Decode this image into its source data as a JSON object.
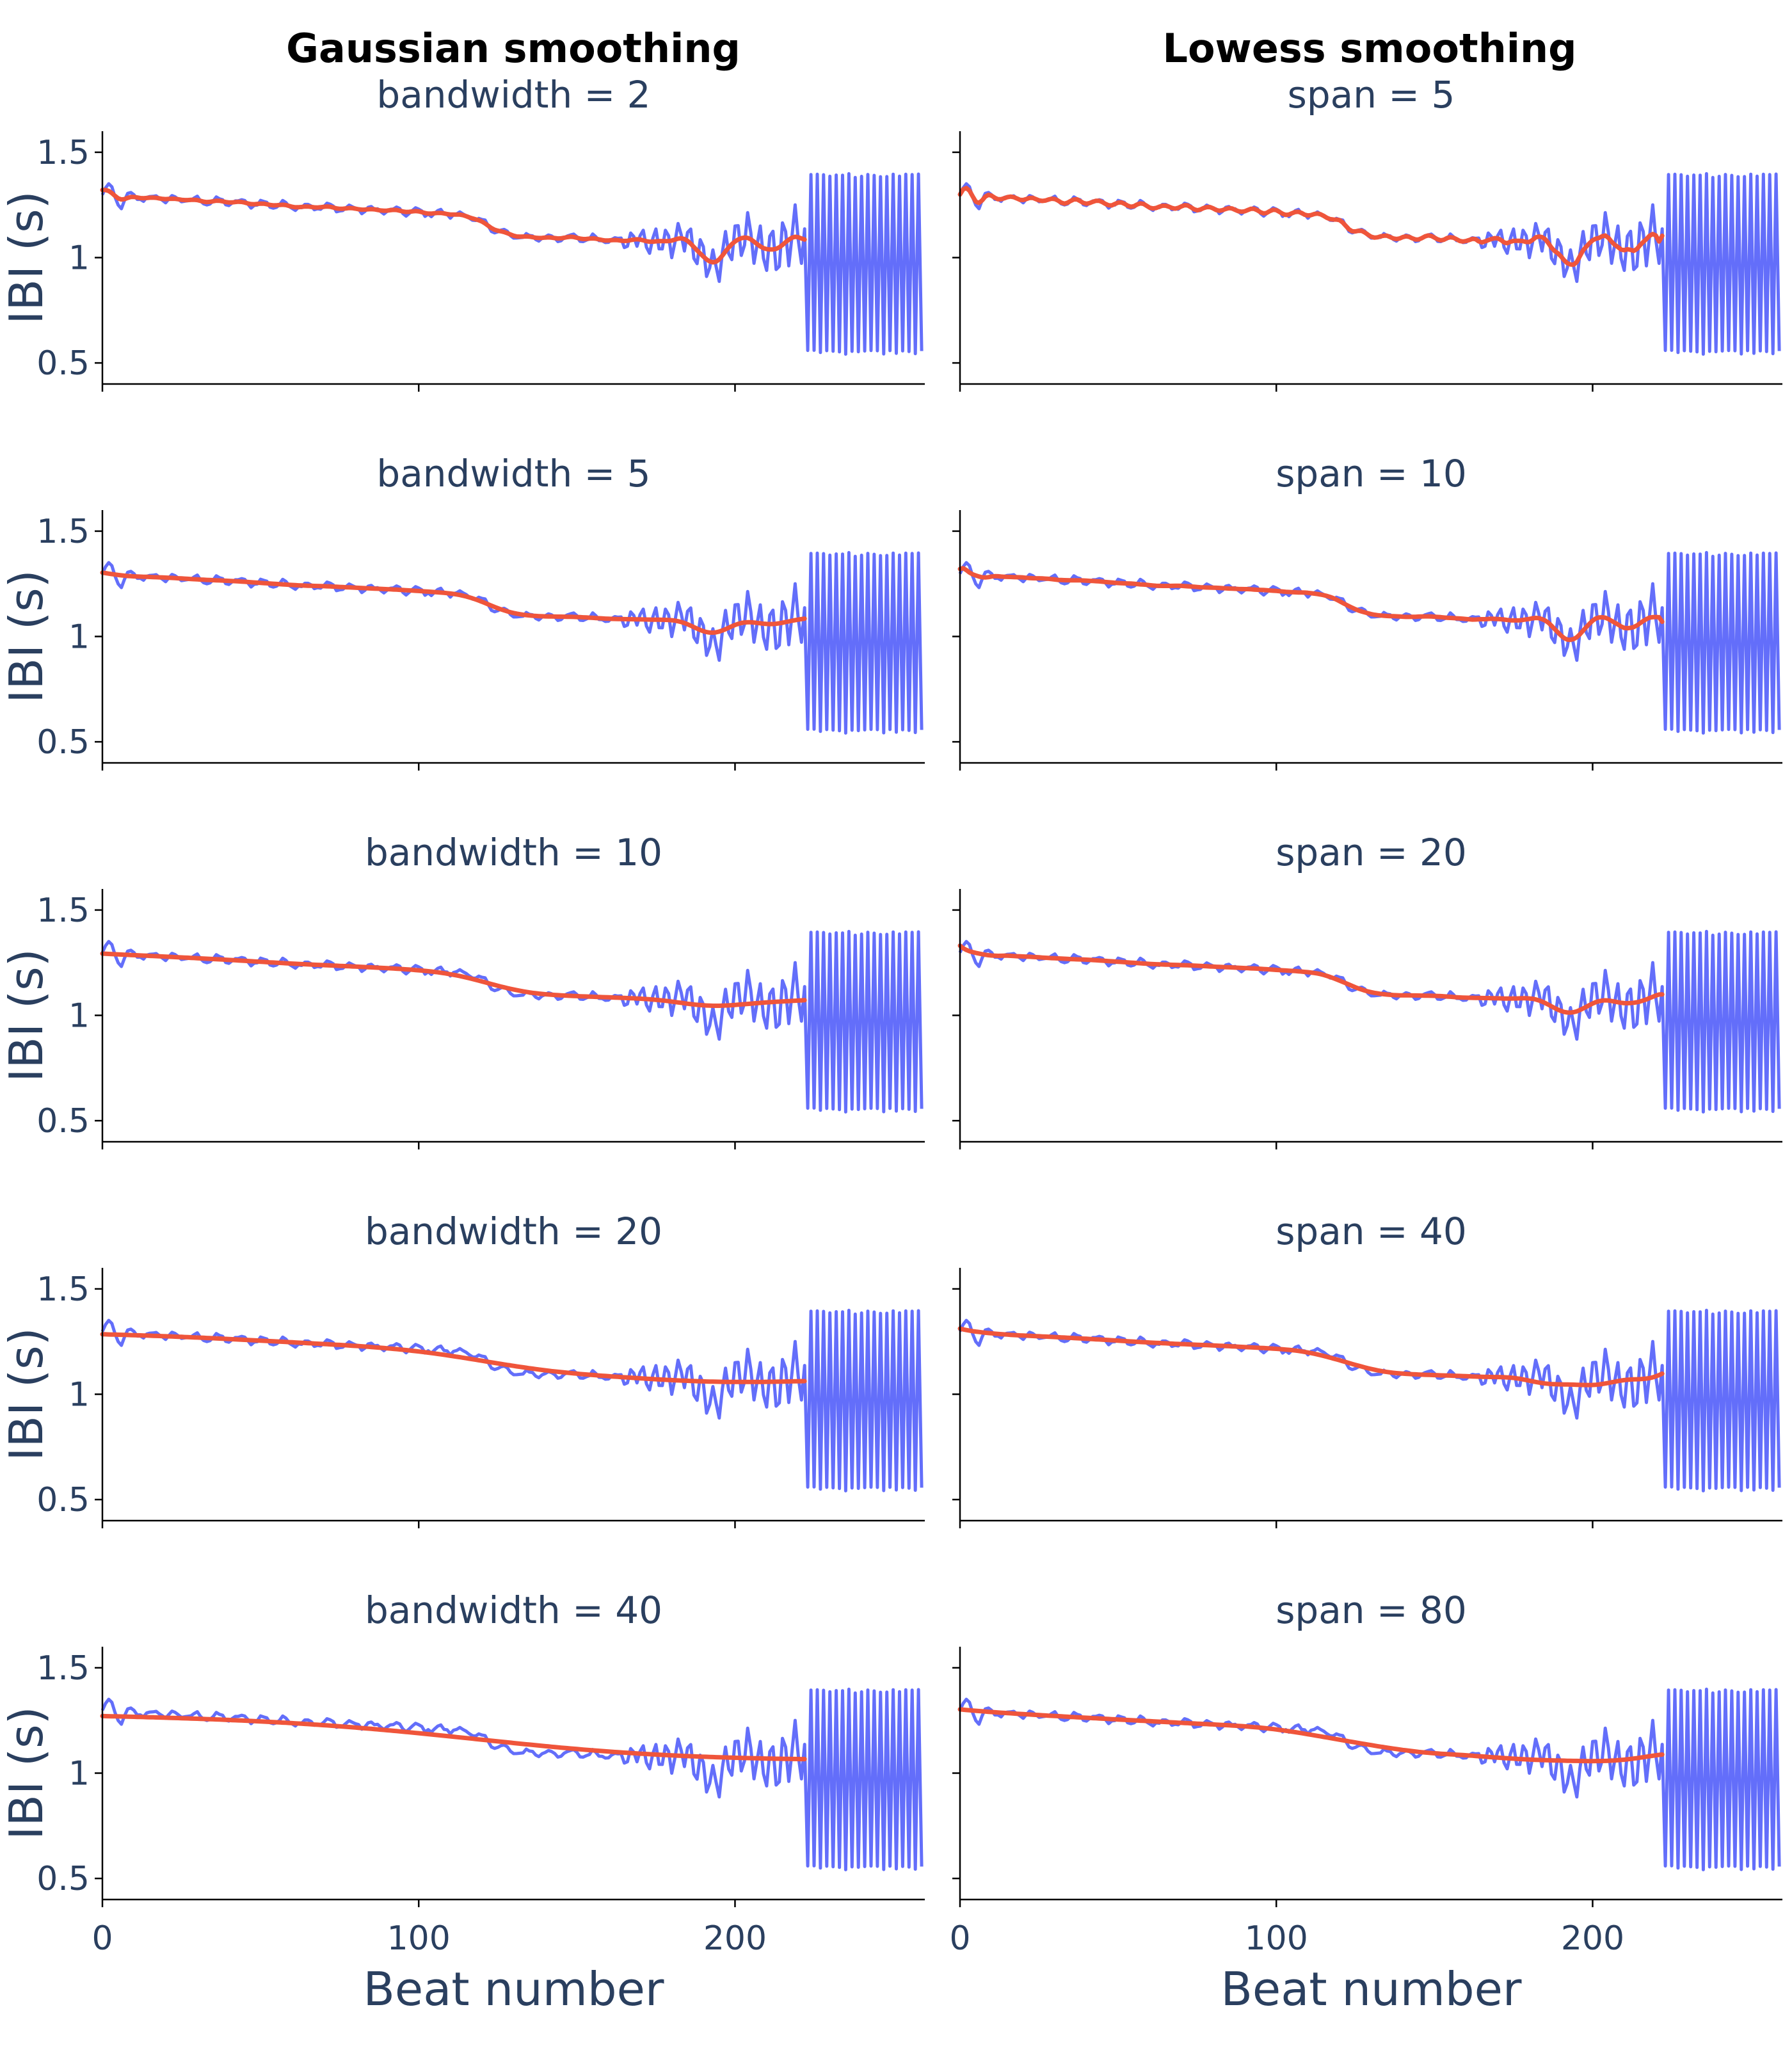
{
  "columns": [
    {
      "title": "Gaussian smoothing",
      "method": "gaussian"
    },
    {
      "title": "Lowess smoothing",
      "method": "lowess"
    }
  ],
  "colors": {
    "raw": "#636efa",
    "smooth": "#ef553b"
  },
  "chart_data": [
    {
      "type": "line",
      "column": 0,
      "row": 0,
      "title": "bandwidth = 2",
      "param": 2,
      "ylabel": "IBI (s)",
      "xlabel": "",
      "xlim": [
        0,
        260
      ],
      "ylim": [
        0.4,
        1.6
      ],
      "xticks": [
        0,
        100,
        200
      ],
      "yticks": [
        0.5,
        1,
        1.5
      ],
      "ytick_labels": [
        "0.5",
        "1",
        "1.5"
      ],
      "series": [
        {
          "role": "raw",
          "n_beats": 260
        },
        {
          "role": "smoothed",
          "n_beats": 223
        }
      ]
    },
    {
      "type": "line",
      "column": 0,
      "row": 1,
      "title": "bandwidth = 5",
      "param": 5,
      "ylabel": "IBI (s)",
      "xlabel": "",
      "xlim": [
        0,
        260
      ],
      "ylim": [
        0.4,
        1.6
      ],
      "xticks": [
        0,
        100,
        200
      ],
      "yticks": [
        0.5,
        1,
        1.5
      ],
      "ytick_labels": [
        "0.5",
        "1",
        "1.5"
      ],
      "series": [
        {
          "role": "raw",
          "n_beats": 260
        },
        {
          "role": "smoothed",
          "n_beats": 223
        }
      ]
    },
    {
      "type": "line",
      "column": 0,
      "row": 2,
      "title": "bandwidth = 10",
      "param": 10,
      "ylabel": "IBI (s)",
      "xlabel": "",
      "xlim": [
        0,
        260
      ],
      "ylim": [
        0.4,
        1.6
      ],
      "xticks": [
        0,
        100,
        200
      ],
      "yticks": [
        0.5,
        1,
        1.5
      ],
      "ytick_labels": [
        "0.5",
        "1",
        "1.5"
      ],
      "series": [
        {
          "role": "raw",
          "n_beats": 260
        },
        {
          "role": "smoothed",
          "n_beats": 223
        }
      ]
    },
    {
      "type": "line",
      "column": 0,
      "row": 3,
      "title": "bandwidth = 20",
      "param": 20,
      "ylabel": "IBI (s)",
      "xlabel": "",
      "xlim": [
        0,
        260
      ],
      "ylim": [
        0.4,
        1.6
      ],
      "xticks": [
        0,
        100,
        200
      ],
      "yticks": [
        0.5,
        1,
        1.5
      ],
      "ytick_labels": [
        "0.5",
        "1",
        "1.5"
      ],
      "series": [
        {
          "role": "raw",
          "n_beats": 260
        },
        {
          "role": "smoothed",
          "n_beats": 223
        }
      ]
    },
    {
      "type": "line",
      "column": 0,
      "row": 4,
      "title": "bandwidth = 40",
      "param": 40,
      "ylabel": "IBI (s)",
      "xlabel": "Beat number",
      "xlim": [
        0,
        260
      ],
      "ylim": [
        0.4,
        1.6
      ],
      "xticks": [
        0,
        100,
        200
      ],
      "xtick_labels": [
        "0",
        "100",
        "200"
      ],
      "yticks": [
        0.5,
        1,
        1.5
      ],
      "ytick_labels": [
        "0.5",
        "1",
        "1.5"
      ],
      "series": [
        {
          "role": "raw",
          "n_beats": 260
        },
        {
          "role": "smoothed",
          "n_beats": 223
        }
      ]
    },
    {
      "type": "line",
      "column": 1,
      "row": 0,
      "title": "span = 5",
      "param": 5,
      "ylabel": "",
      "xlabel": "",
      "xlim": [
        0,
        260
      ],
      "ylim": [
        0.4,
        1.6
      ],
      "xticks": [
        0,
        100,
        200
      ],
      "yticks": [
        0.5,
        1,
        1.5
      ],
      "series": [
        {
          "role": "raw",
          "n_beats": 260
        },
        {
          "role": "smoothed",
          "n_beats": 223
        }
      ]
    },
    {
      "type": "line",
      "column": 1,
      "row": 1,
      "title": "span = 10",
      "param": 10,
      "ylabel": "",
      "xlabel": "",
      "xlim": [
        0,
        260
      ],
      "ylim": [
        0.4,
        1.6
      ],
      "xticks": [
        0,
        100,
        200
      ],
      "yticks": [
        0.5,
        1,
        1.5
      ],
      "series": [
        {
          "role": "raw",
          "n_beats": 260
        },
        {
          "role": "smoothed",
          "n_beats": 223
        }
      ]
    },
    {
      "type": "line",
      "column": 1,
      "row": 2,
      "title": "span = 20",
      "param": 20,
      "ylabel": "",
      "xlabel": "",
      "xlim": [
        0,
        260
      ],
      "ylim": [
        0.4,
        1.6
      ],
      "xticks": [
        0,
        100,
        200
      ],
      "yticks": [
        0.5,
        1,
        1.5
      ],
      "series": [
        {
          "role": "raw",
          "n_beats": 260
        },
        {
          "role": "smoothed",
          "n_beats": 223
        }
      ]
    },
    {
      "type": "line",
      "column": 1,
      "row": 3,
      "title": "span = 40",
      "param": 40,
      "ylabel": "",
      "xlabel": "",
      "xlim": [
        0,
        260
      ],
      "ylim": [
        0.4,
        1.6
      ],
      "xticks": [
        0,
        100,
        200
      ],
      "yticks": [
        0.5,
        1,
        1.5
      ],
      "series": [
        {
          "role": "raw",
          "n_beats": 260
        },
        {
          "role": "smoothed",
          "n_beats": 223
        }
      ]
    },
    {
      "type": "line",
      "column": 1,
      "row": 4,
      "title": "span = 80",
      "param": 80,
      "ylabel": "",
      "xlabel": "Beat number",
      "xlim": [
        0,
        260
      ],
      "ylim": [
        0.4,
        1.6
      ],
      "xticks": [
        0,
        100,
        200
      ],
      "xtick_labels": [
        "0",
        "100",
        "200"
      ],
      "yticks": [
        0.5,
        1,
        1.5
      ],
      "series": [
        {
          "role": "raw",
          "n_beats": 260
        },
        {
          "role": "smoothed",
          "n_beats": 223
        }
      ]
    }
  ]
}
